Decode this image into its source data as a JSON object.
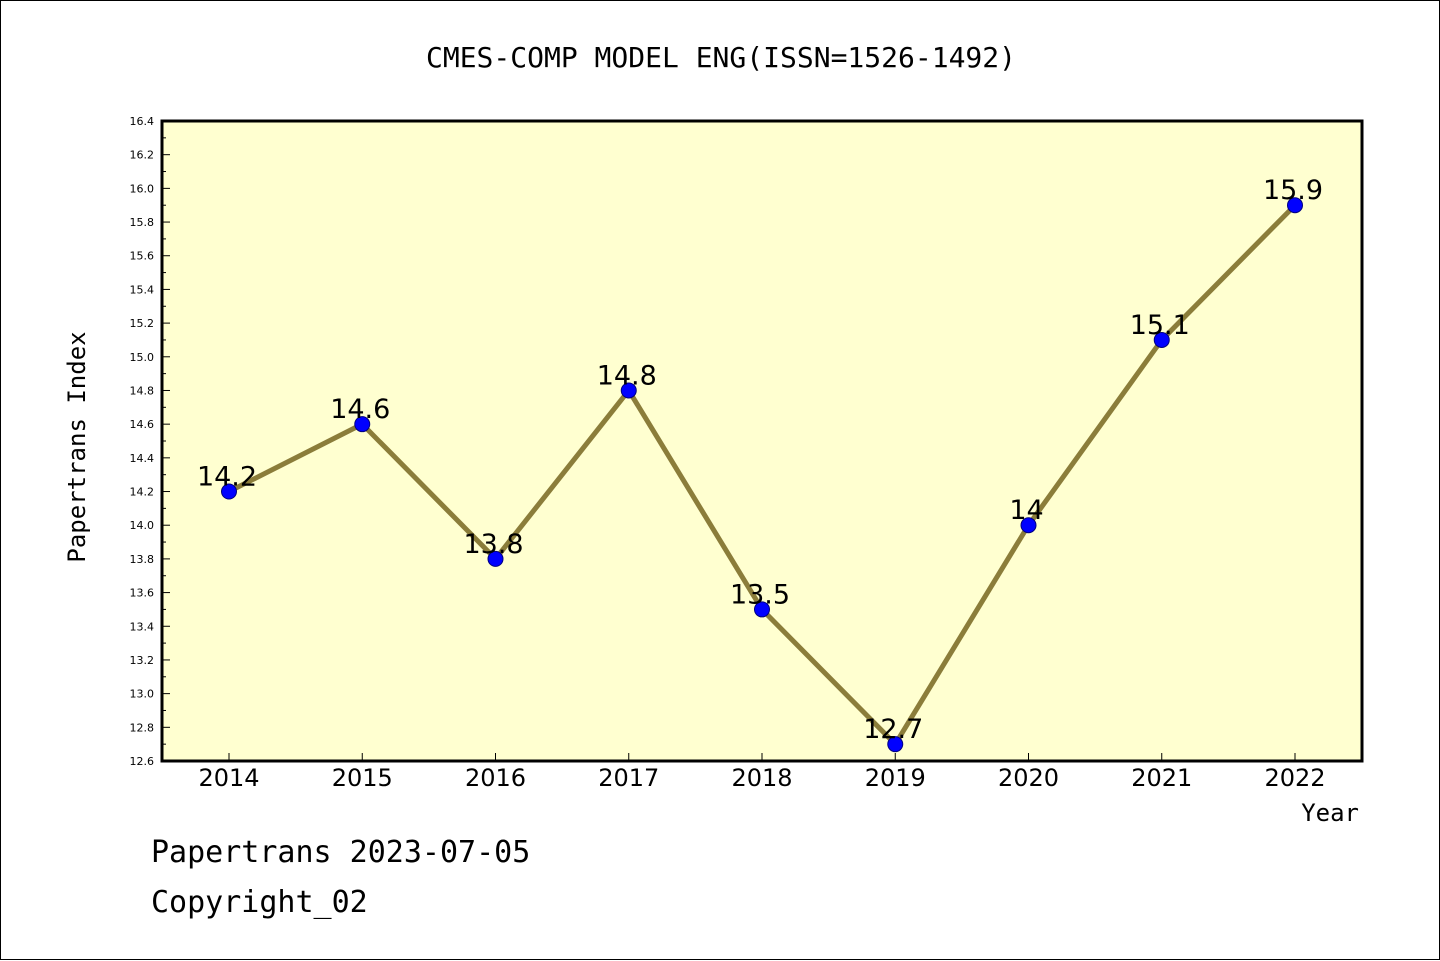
{
  "chart_data": {
    "type": "line",
    "title": "CMES-COMP MODEL ENG(ISSN=1526-1492)",
    "xlabel": "Year",
    "ylabel": "Papertrans Index",
    "categories": [
      "2014",
      "2015",
      "2016",
      "2017",
      "2018",
      "2019",
      "2020",
      "2021",
      "2022"
    ],
    "values": [
      14.2,
      14.6,
      13.8,
      14.8,
      13.5,
      12.7,
      14.0,
      15.1,
      15.9
    ],
    "data_labels": [
      "14.2",
      "14.6",
      "13.8",
      "14.8",
      "13.5",
      "12.7",
      "14",
      "15.1",
      "15.9"
    ],
    "ylim": [
      12.6,
      16.4
    ],
    "yticks": [
      "12.6",
      "12.8",
      "13.0",
      "13.2",
      "13.4",
      "13.6",
      "13.8",
      "14.0",
      "14.2",
      "14.4",
      "14.6",
      "14.8",
      "15.0",
      "15.2",
      "15.4",
      "15.6",
      "15.8",
      "16.0",
      "16.2",
      "16.4"
    ],
    "grid": false,
    "legend": "none",
    "colors": {
      "plot_background": "#ffffd0",
      "line": "#8b7d3a",
      "marker_fill": "#0000ff",
      "marker_edge": "#000080"
    }
  },
  "footer": {
    "date_line": "Papertrans 2023-07-05",
    "copyright_line": "Copyright_02"
  }
}
